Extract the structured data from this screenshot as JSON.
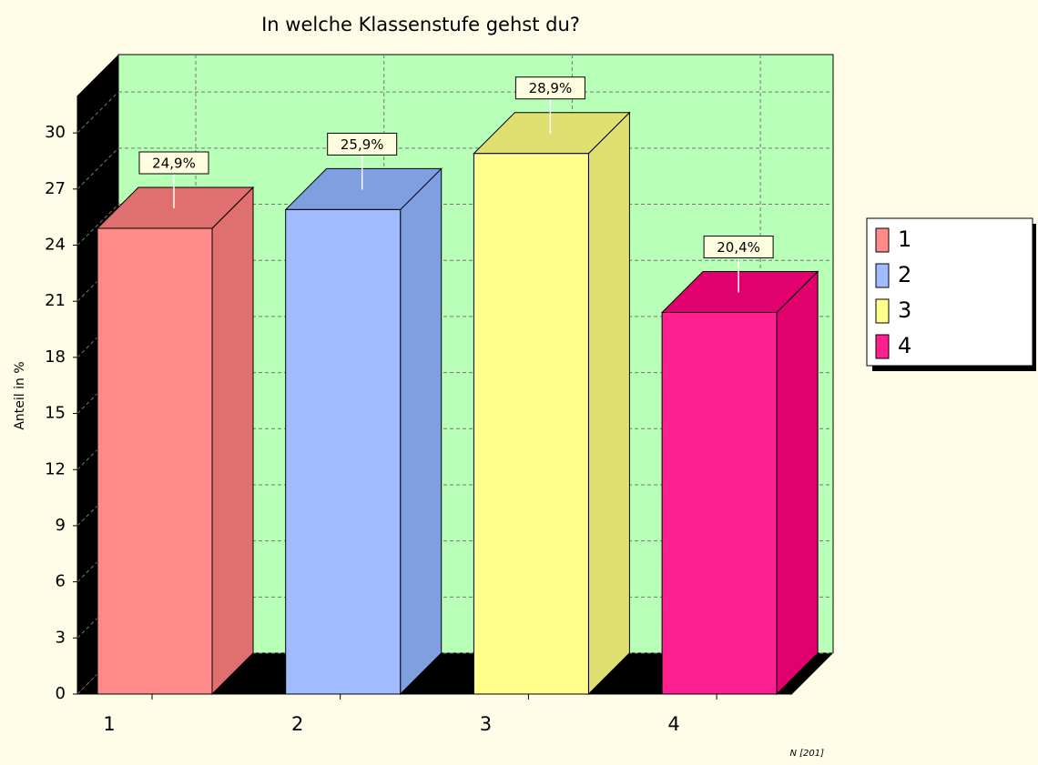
{
  "chart_data": {
    "type": "bar3d",
    "title": "In welche Klassenstufe gehst du?",
    "y_label": "Anteil in %",
    "note": "N [201]",
    "categories": [
      "1",
      "2",
      "3",
      "4"
    ],
    "values": [
      24.9,
      25.9,
      28.9,
      20.4
    ],
    "value_labels": [
      "24,9%",
      "25,9%",
      "28,9%",
      "20,4%"
    ],
    "colors": [
      "#ff8a8a",
      "#a0bcff",
      "#ffff8a",
      "#ff2090"
    ],
    "side_colors": [
      "#e07070",
      "#7f9fe0",
      "#e0e070",
      "#e0006e"
    ],
    "ylim": [
      0,
      32
    ],
    "yticks": [
      0,
      3,
      6,
      9,
      12,
      15,
      18,
      21,
      24,
      27,
      30
    ],
    "grid": true,
    "legend": "right"
  }
}
